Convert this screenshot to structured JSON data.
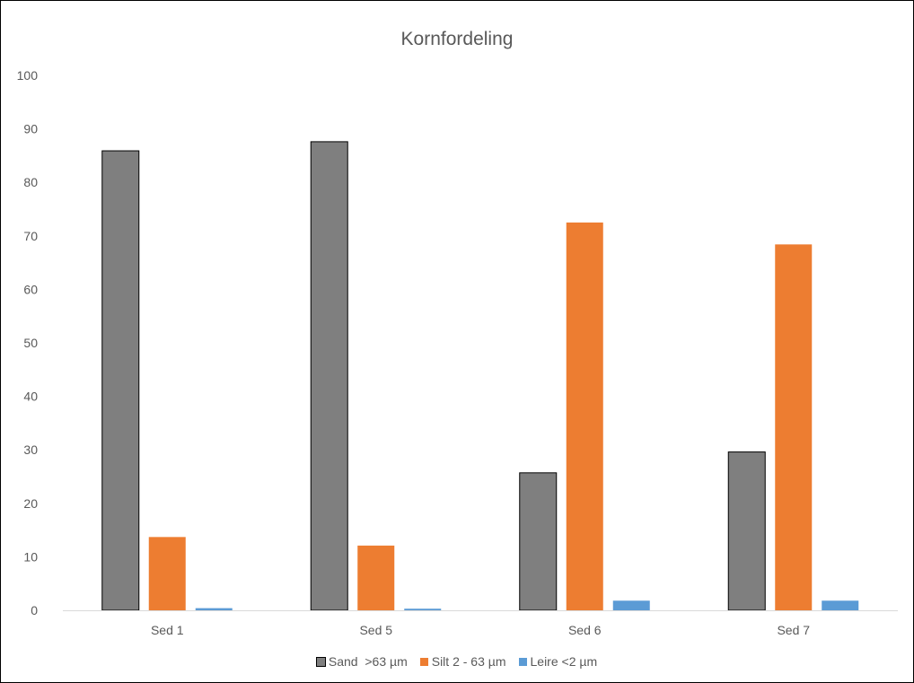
{
  "chart_data": {
    "type": "bar",
    "title": "Kornfordeling",
    "xlabel": "",
    "ylabel": "",
    "categories": [
      "Sed 1",
      "Sed 5",
      "Sed 6",
      "Sed 7"
    ],
    "ylim": [
      0,
      100
    ],
    "yticks": [
      0,
      10,
      20,
      30,
      40,
      50,
      60,
      70,
      80,
      90,
      100
    ],
    "grid": false,
    "legend_position": "bottom",
    "series": [
      {
        "name": "Sand  >63 µm",
        "color": "#7f7f7f",
        "values": [
          85.9,
          87.6,
          25.7,
          29.6
        ]
      },
      {
        "name": "Silt 2 - 63 µm",
        "color": "#ed7d31",
        "values": [
          13.7,
          12.1,
          72.5,
          68.4
        ]
      },
      {
        "name": "Leire <2 µm",
        "color": "#5b9bd5",
        "values": [
          0.4,
          0.3,
          1.8,
          1.8
        ]
      }
    ]
  }
}
